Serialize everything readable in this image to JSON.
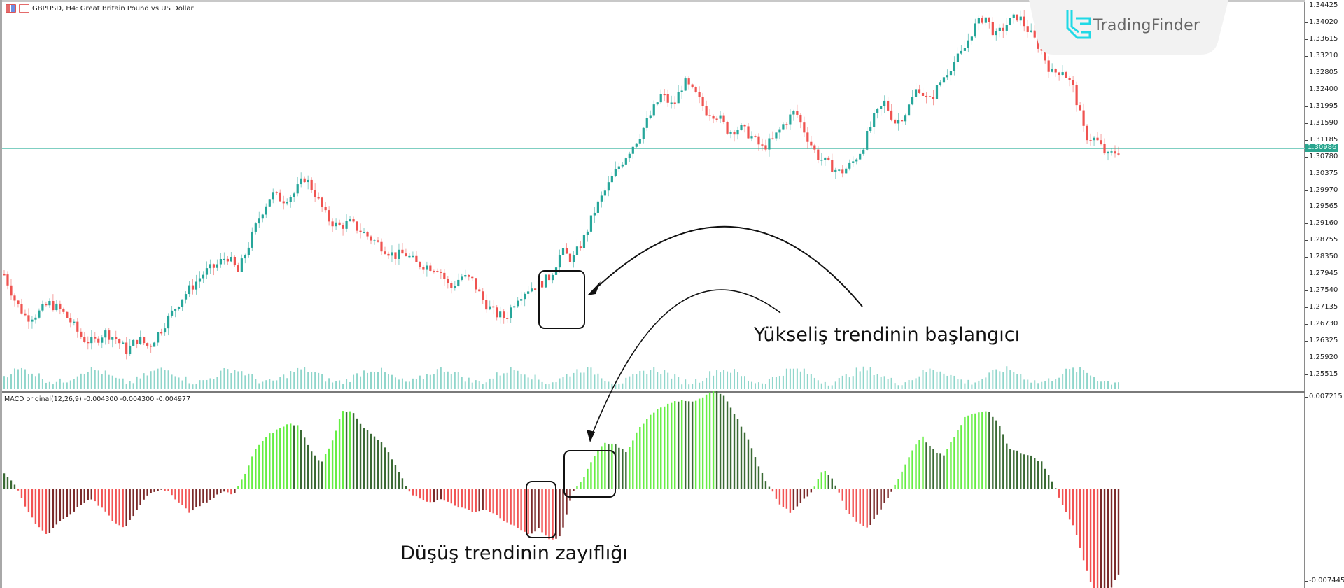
{
  "window": {
    "symbol_title": "GBPUSD, H4:  Great Britain Pound vs US Dollar",
    "icons": [
      "chart-type-icon",
      "symbol-icon"
    ]
  },
  "watermark": {
    "brand": "TradingFinder",
    "accent": "#1fd9e6"
  },
  "colors": {
    "bull": "#26a69a",
    "bear": "#ef5350",
    "volume": "#8fd6cb",
    "hline": "#7fcfc2",
    "macd_up_bright": "#66ee44",
    "macd_up_dark": "#3a6a34",
    "macd_down_bright": "#f25454",
    "macd_down_dark": "#7a2a2a",
    "price_tag_bg": "#2aa58f"
  },
  "annotations": {
    "uptrend_start": "Yükseliş trendinin başlangıcı",
    "downtrend_weakening": "Düşüş trendinin zayıflığı"
  },
  "macd": {
    "label": "MACD original(12,26,9) -0.004300 -0.004300 -0.004977",
    "ymax_label": "0.007215",
    "ymin_label": "-0.007445"
  },
  "price_axis": {
    "current_price": "1.30986",
    "ticks": [
      "1.34425",
      "1.34020",
      "1.33615",
      "1.33210",
      "1.32805",
      "1.32400",
      "1.31995",
      "1.31590",
      "1.31185",
      "1.30780",
      "1.30375",
      "1.29970",
      "1.29565",
      "1.29160",
      "1.28755",
      "1.28350",
      "1.27945",
      "1.27540",
      "1.27135",
      "1.26730",
      "1.26325",
      "1.25920",
      "1.25515"
    ]
  },
  "chart_data": [
    {
      "type": "candlestick",
      "title": "GBPUSD, H4: Great Britain Pound vs US Dollar",
      "ylim": [
        1.2525,
        1.345
      ],
      "y_ticks": [
        1.34425,
        1.3402,
        1.33615,
        1.3321,
        1.32805,
        1.324,
        1.31995,
        1.3159,
        1.31185,
        1.3078,
        1.30375,
        1.2997,
        1.29565,
        1.2916,
        1.28755,
        1.2835,
        1.27945,
        1.2754,
        1.27135,
        1.2673,
        1.26325,
        1.2592,
        1.25515
      ],
      "current_price": 1.30986,
      "close_path": [
        1.2795,
        1.273,
        1.269,
        1.27,
        1.2725,
        1.271,
        1.268,
        1.264,
        1.263,
        1.2655,
        1.264,
        1.261,
        1.264,
        1.262,
        1.266,
        1.27,
        1.274,
        1.277,
        1.28,
        1.2815,
        1.284,
        1.28,
        1.287,
        1.294,
        1.299,
        1.2975,
        1.299,
        1.303,
        1.2985,
        1.293,
        1.291,
        1.292,
        1.29,
        1.288,
        1.286,
        1.284,
        1.2845,
        1.282,
        1.2815,
        1.281,
        1.276,
        1.279,
        1.278,
        1.273,
        1.27,
        1.269,
        1.274,
        1.276,
        1.277,
        1.279,
        1.285,
        1.283,
        1.288,
        1.295,
        1.3,
        1.305,
        1.309,
        1.313,
        1.318,
        1.323,
        1.32,
        1.326,
        1.323,
        1.319,
        1.318,
        1.314,
        1.315,
        1.313,
        1.31,
        1.312,
        1.316,
        1.319,
        1.313,
        1.308,
        1.306,
        1.304,
        1.306,
        1.31,
        1.317,
        1.321,
        1.316,
        1.319,
        1.325,
        1.321,
        1.326,
        1.33,
        1.333,
        1.339,
        1.342,
        1.337,
        1.34,
        1.342,
        1.338,
        1.334,
        1.328,
        1.329,
        1.324,
        1.313,
        1.312,
        1.308,
        1.3095
      ],
      "volume_note": "tick volume histogram shown at bottom of main pane",
      "annotation_boxes": [
        {
          "label": "Yükseliş trendinin başlangıcı",
          "x_range": [
            770,
            835
          ]
        }
      ]
    },
    {
      "type": "bar",
      "title": "MACD original(12,26,9)",
      "values_label": [
        -0.0043,
        -0.0043,
        -0.004977
      ],
      "ylim": [
        -0.007445,
        0.007215
      ],
      "histogram_path": [
        0.0012,
        0.0003,
        -0.0015,
        -0.0028,
        -0.0035,
        -0.0025,
        -0.002,
        -0.0012,
        -0.0008,
        -0.0015,
        -0.0025,
        -0.003,
        -0.0018,
        -0.0005,
        -0.0001,
        -0.0002,
        -0.001,
        -0.0018,
        -0.0012,
        -0.0008,
        -0.0002,
        -0.0004,
        0.001,
        0.003,
        0.004,
        0.0045,
        0.005,
        0.0048,
        0.003,
        0.002,
        0.0035,
        0.006,
        0.0058,
        0.0045,
        0.004,
        0.003,
        0.0015,
        -0.0002,
        -0.0008,
        -0.001,
        -0.0008,
        -0.0012,
        -0.0015,
        -0.0018,
        -0.0016,
        -0.002,
        -0.0025,
        -0.003,
        -0.0035,
        -0.003,
        -0.004,
        -0.0035,
        -0.0003,
        0.0008,
        0.0025,
        0.0035,
        0.0033,
        0.0028,
        0.0045,
        0.0055,
        0.0062,
        0.0065,
        0.0068,
        0.0066,
        0.007,
        0.0075,
        0.007,
        0.0055,
        0.004,
        0.0018,
        0.0002,
        -0.0012,
        -0.0018,
        -0.001,
        -0.0002,
        0.0015,
        0.0005,
        -0.0015,
        -0.0025,
        -0.003,
        -0.002,
        -0.0005,
        0.001,
        0.0028,
        0.004,
        0.003,
        0.0025,
        0.004,
        0.0055,
        0.0058,
        0.006,
        0.005,
        0.003,
        0.0028,
        0.0025,
        0.002,
        0.0005,
        -0.0015,
        -0.003,
        -0.006,
        -0.0085,
        -0.008,
        -0.0065
      ]
    }
  ]
}
